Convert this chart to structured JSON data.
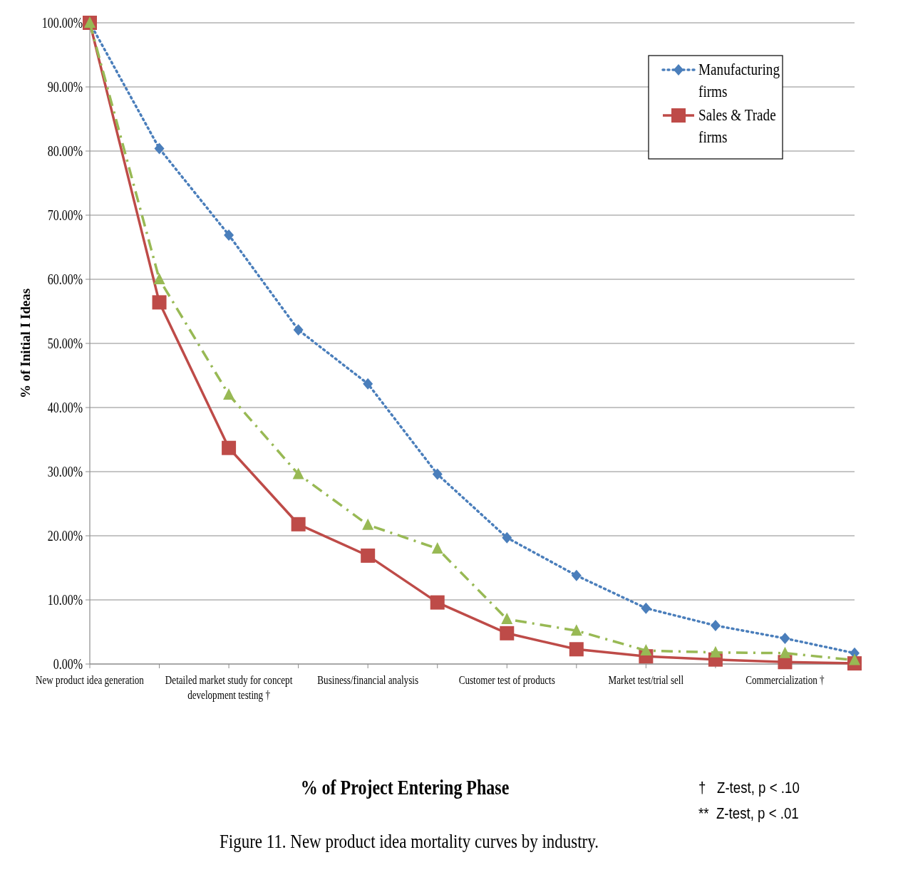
{
  "chart_data": {
    "type": "line",
    "xlabel": "% of Project Entering Phase",
    "ylabel": "% of Initial I Ideas",
    "categories": [
      "New product idea generation",
      null,
      "Detailed market study for concept development testing †",
      null,
      "Business/financial analysis",
      null,
      "Customer test of products",
      null,
      "Market test/trial sell",
      null,
      "Commercialization  †",
      null
    ],
    "series": [
      {
        "name": "Manufacturing firms",
        "color": "#4a7ebb",
        "marker": "diamond",
        "line_style": "dotted",
        "values": [
          100,
          80.4,
          66.9,
          52.1,
          43.7,
          29.6,
          19.7,
          13.8,
          8.7,
          6.0,
          4.0,
          1.7
        ]
      },
      {
        "name": "Sales & Trade firms",
        "color": "#be4b48",
        "marker": "square",
        "line_style": "solid",
        "values": [
          100,
          56.4,
          33.7,
          21.8,
          16.9,
          9.6,
          4.8,
          2.3,
          1.2,
          0.7,
          0.3,
          0.1
        ]
      },
      {
        "color": "#98b954",
        "marker": "triangle",
        "line_style": "dashed",
        "values": [
          100,
          60.0,
          42.0,
          29.6,
          21.7,
          18.0,
          7.0,
          5.2,
          2.1,
          1.8,
          1.7,
          0.6
        ]
      }
    ],
    "ylim": [
      0,
      100
    ],
    "yticks": [
      {
        "value": 0,
        "label": "0.00%"
      },
      {
        "value": 10,
        "label": "10.00%"
      },
      {
        "value": 20,
        "label": "20.00%"
      },
      {
        "value": 30,
        "label": "30.00%"
      },
      {
        "value": 40,
        "label": "40.00%"
      },
      {
        "value": 50,
        "label": "50.00%"
      },
      {
        "value": 60,
        "label": "60.00%"
      },
      {
        "value": 70,
        "label": "70.00%"
      },
      {
        "value": 80,
        "label": "80.00%"
      },
      {
        "value": 90,
        "label": "90.00%"
      },
      {
        "value": 100,
        "label": "100.00%"
      }
    ],
    "grid": "y",
    "legend": "top right",
    "annotations": [
      "†   Z-test, p < .10",
      "**  Z-test, p < .01",
      "Figure 11. New product idea mortality curves by industry."
    ]
  }
}
